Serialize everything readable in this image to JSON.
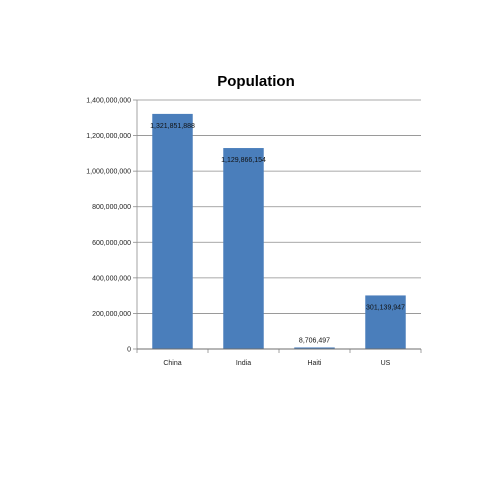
{
  "chart_data": {
    "type": "bar",
    "title": "Population",
    "xlabel": "",
    "ylabel": "",
    "categories": [
      "China",
      "India",
      "Haiti",
      "US"
    ],
    "values": [
      1321851888,
      1129866154,
      8706497,
      301139947
    ],
    "data_labels": [
      "1,321,851,888",
      "1,129,866,154",
      "8,706,497",
      "301,139,947"
    ],
    "ylim": [
      0,
      1400000000
    ],
    "yticks": [
      0,
      200000000,
      400000000,
      600000000,
      800000000,
      1000000000,
      1200000000,
      1400000000
    ],
    "ytick_labels": [
      "0",
      "200,000,000",
      "400,000,000",
      "600,000,000",
      "800,000,000",
      "1,000,000,000",
      "1,200,000,000",
      "1,400,000,000"
    ],
    "grid": true,
    "legend": "none",
    "bar_color": "#4a7ebb",
    "grid_color": "#8c8c8c"
  }
}
